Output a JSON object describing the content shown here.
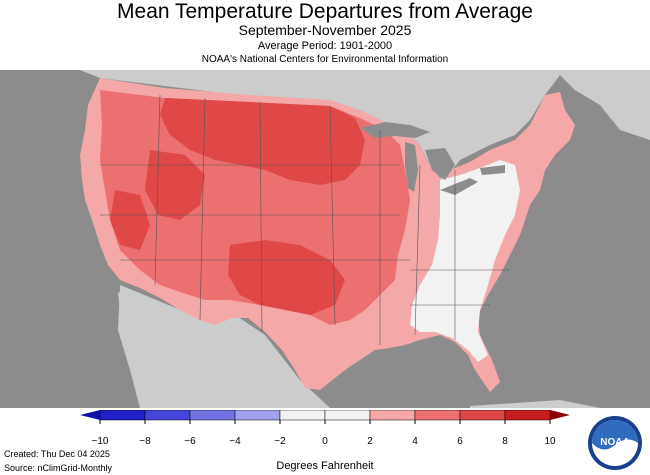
{
  "header": {
    "title": "Mean Temperature Departures from Average",
    "subtitle": "September-November 2025",
    "period": "Average Period: 1901-2000",
    "agency": "NOAA's National Centers for Environmental Information"
  },
  "legend": {
    "ticks": [
      "−10",
      "−8",
      "−6",
      "−4",
      "−2",
      "0",
      "2",
      "4",
      "6",
      "8",
      "10"
    ],
    "colors": [
      "#2020c8",
      "#4444d8",
      "#7070e0",
      "#a0a0ee",
      "#f2f2f2",
      "#f2f2f2",
      "#f4a8a8",
      "#ec7070",
      "#e04848",
      "#c81e1e"
    ],
    "units": "Degrees Fahrenheit"
  },
  "footer": {
    "created": "Created: Thu Dec 04 2025",
    "source": "Source: nClimGrid-Monthly"
  },
  "logo": {
    "text": "NOAA",
    "icon": "noaa-logo"
  },
  "map_colors": {
    "ocean": "#8c8c8c",
    "land_outside": "#cccccc",
    "plus2_4": "#f4a8a8",
    "plus4_6": "#ec7070",
    "plus6_8": "#e04848",
    "near_normal": "#f2f2f2",
    "lakes": "#8c8c8c"
  }
}
